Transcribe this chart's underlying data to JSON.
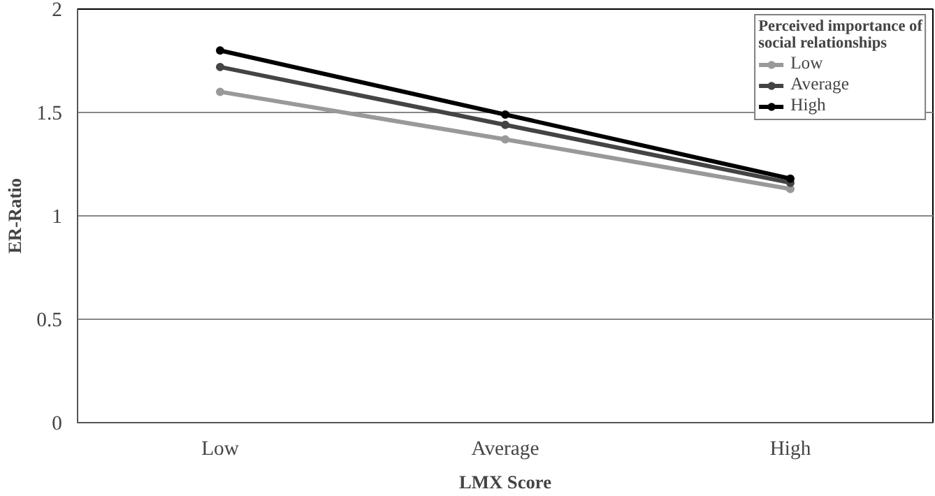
{
  "chart_data": {
    "type": "line",
    "xlabel": "LMX Score",
    "ylabel": "ER-Ratio",
    "legend_title": "Perceived importance of social relationships",
    "categories": [
      "Low",
      "Average",
      "High"
    ],
    "series": [
      {
        "name": "Low",
        "color": "#999999",
        "values": [
          1.6,
          1.37,
          1.13
        ]
      },
      {
        "name": "Average",
        "color": "#444444",
        "values": [
          1.72,
          1.44,
          1.16
        ]
      },
      {
        "name": "High",
        "color": "#000000",
        "values": [
          1.8,
          1.49,
          1.18
        ]
      }
    ],
    "ylim": [
      0,
      2
    ],
    "yticks": [
      0,
      0.5,
      1,
      1.5,
      2
    ],
    "grid": "y",
    "legend": "top right",
    "marker": "circle",
    "line_style": "solid"
  }
}
